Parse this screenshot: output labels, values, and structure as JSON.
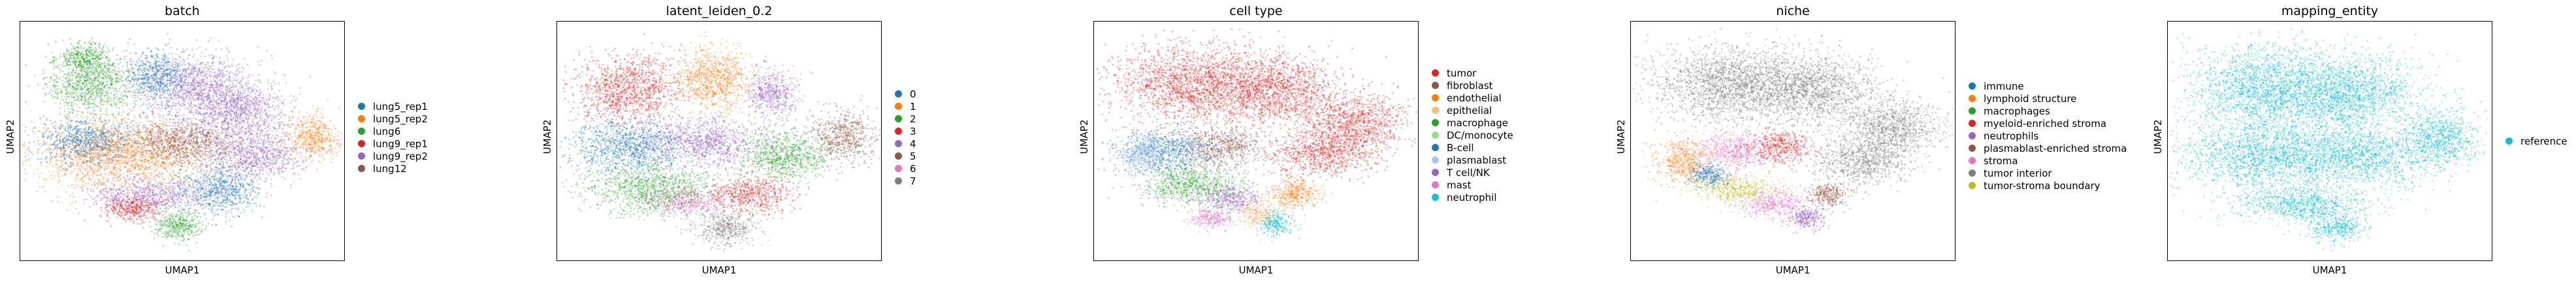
{
  "chart_data": [
    {
      "type": "scatter",
      "title": "batch",
      "xlabel": "UMAP1",
      "ylabel": "UMAP2",
      "legend_position": "right",
      "series": [
        {
          "name": "lung5_rep1",
          "color": "#1f77b4"
        },
        {
          "name": "lung5_rep2",
          "color": "#ff7f0e"
        },
        {
          "name": "lung6",
          "color": "#2ca02c"
        },
        {
          "name": "lung9_rep1",
          "color": "#d62728"
        },
        {
          "name": "lung9_rep2",
          "color": "#9467bd"
        },
        {
          "name": "lung12",
          "color": "#8c564b"
        }
      ],
      "clusters": [
        {
          "x": 0.22,
          "y": 0.74,
          "rx": 0.14,
          "ry": 0.12,
          "color": "#2ca02c"
        },
        {
          "x": 0.2,
          "y": 0.85,
          "rx": 0.08,
          "ry": 0.06,
          "color": "#2ca02c"
        },
        {
          "x": 0.55,
          "y": 0.72,
          "rx": 0.18,
          "ry": 0.14,
          "color": "#9467bd"
        },
        {
          "x": 0.42,
          "y": 0.78,
          "rx": 0.1,
          "ry": 0.1,
          "color": "#1f77b4"
        },
        {
          "x": 0.68,
          "y": 0.62,
          "rx": 0.14,
          "ry": 0.12,
          "color": "#9467bd"
        },
        {
          "x": 0.9,
          "y": 0.52,
          "rx": 0.08,
          "ry": 0.09,
          "color": "#ff7f0e"
        },
        {
          "x": 0.3,
          "y": 0.45,
          "rx": 0.26,
          "ry": 0.14,
          "color": "#ff7f0e"
        },
        {
          "x": 0.2,
          "y": 0.5,
          "rx": 0.14,
          "ry": 0.1,
          "color": "#1f77b4"
        },
        {
          "x": 0.5,
          "y": 0.5,
          "rx": 0.18,
          "ry": 0.1,
          "color": "#8c564b"
        },
        {
          "x": 0.72,
          "y": 0.44,
          "rx": 0.16,
          "ry": 0.1,
          "color": "#9467bd"
        },
        {
          "x": 0.4,
          "y": 0.28,
          "rx": 0.2,
          "ry": 0.07,
          "color": "#9467bd"
        },
        {
          "x": 0.35,
          "y": 0.22,
          "rx": 0.1,
          "ry": 0.05,
          "color": "#d62728"
        },
        {
          "x": 0.48,
          "y": 0.15,
          "rx": 0.08,
          "ry": 0.06,
          "color": "#2ca02c"
        },
        {
          "x": 0.62,
          "y": 0.3,
          "rx": 0.12,
          "ry": 0.1,
          "color": "#1f77b4"
        }
      ]
    },
    {
      "type": "scatter",
      "title": "latent_leiden_0.2",
      "xlabel": "UMAP1",
      "ylabel": "UMAP2",
      "legend_position": "right",
      "series": [
        {
          "name": "0",
          "color": "#1f77b4"
        },
        {
          "name": "1",
          "color": "#ff7f0e"
        },
        {
          "name": "2",
          "color": "#2ca02c"
        },
        {
          "name": "3",
          "color": "#d62728"
        },
        {
          "name": "4",
          "color": "#9467bd"
        },
        {
          "name": "5",
          "color": "#8c564b"
        },
        {
          "name": "6",
          "color": "#e377c2"
        },
        {
          "name": "7",
          "color": "#7f7f7f"
        }
      ],
      "clusters": [
        {
          "x": 0.22,
          "y": 0.72,
          "rx": 0.16,
          "ry": 0.14,
          "color": "#d62728"
        },
        {
          "x": 0.48,
          "y": 0.76,
          "rx": 0.12,
          "ry": 0.13,
          "color": "#ff7f0e"
        },
        {
          "x": 0.66,
          "y": 0.7,
          "rx": 0.08,
          "ry": 0.1,
          "color": "#9467bd"
        },
        {
          "x": 0.88,
          "y": 0.52,
          "rx": 0.1,
          "ry": 0.1,
          "color": "#8c564b"
        },
        {
          "x": 0.22,
          "y": 0.48,
          "rx": 0.18,
          "ry": 0.12,
          "color": "#1f77b4"
        },
        {
          "x": 0.46,
          "y": 0.5,
          "rx": 0.18,
          "ry": 0.1,
          "color": "#9467bd"
        },
        {
          "x": 0.7,
          "y": 0.44,
          "rx": 0.14,
          "ry": 0.1,
          "color": "#2ca02c"
        },
        {
          "x": 0.3,
          "y": 0.3,
          "rx": 0.2,
          "ry": 0.1,
          "color": "#2ca02c"
        },
        {
          "x": 0.4,
          "y": 0.25,
          "rx": 0.12,
          "ry": 0.06,
          "color": "#e377c2"
        },
        {
          "x": 0.52,
          "y": 0.14,
          "rx": 0.1,
          "ry": 0.07,
          "color": "#7f7f7f"
        },
        {
          "x": 0.6,
          "y": 0.28,
          "rx": 0.12,
          "ry": 0.08,
          "color": "#d62728"
        }
      ]
    },
    {
      "type": "scatter",
      "title": "cell type",
      "xlabel": "UMAP1",
      "ylabel": "UMAP2",
      "legend_position": "right",
      "series": [
        {
          "name": "tumor",
          "color": "#d62728"
        },
        {
          "name": "fibroblast",
          "color": "#8c564b"
        },
        {
          "name": "endothelial",
          "color": "#ff7f0e"
        },
        {
          "name": "epithelial",
          "color": "#ffbb78"
        },
        {
          "name": "macrophage",
          "color": "#2ca02c"
        },
        {
          "name": "DC/monocyte",
          "color": "#98df8a"
        },
        {
          "name": "B-cell",
          "color": "#1f77b4"
        },
        {
          "name": "plasmablast",
          "color": "#aec7e8"
        },
        {
          "name": "T cell/NK",
          "color": "#9467bd"
        },
        {
          "name": "mast",
          "color": "#e377c2"
        },
        {
          "name": "neutrophil",
          "color": "#17becf"
        }
      ],
      "clusters": [
        {
          "x": 0.3,
          "y": 0.74,
          "rx": 0.24,
          "ry": 0.16,
          "color": "#d62728"
        },
        {
          "x": 0.55,
          "y": 0.72,
          "rx": 0.2,
          "ry": 0.14,
          "color": "#d62728"
        },
        {
          "x": 0.8,
          "y": 0.58,
          "rx": 0.16,
          "ry": 0.12,
          "color": "#d62728"
        },
        {
          "x": 0.7,
          "y": 0.45,
          "rx": 0.16,
          "ry": 0.1,
          "color": "#d62728"
        },
        {
          "x": 0.22,
          "y": 0.46,
          "rx": 0.16,
          "ry": 0.1,
          "color": "#1f77b4"
        },
        {
          "x": 0.15,
          "y": 0.44,
          "rx": 0.08,
          "ry": 0.07,
          "color": "#aec7e8"
        },
        {
          "x": 0.4,
          "y": 0.48,
          "rx": 0.12,
          "ry": 0.08,
          "color": "#8c564b"
        },
        {
          "x": 0.3,
          "y": 0.32,
          "rx": 0.16,
          "ry": 0.08,
          "color": "#2ca02c"
        },
        {
          "x": 0.42,
          "y": 0.26,
          "rx": 0.1,
          "ry": 0.06,
          "color": "#9467bd"
        },
        {
          "x": 0.5,
          "y": 0.2,
          "rx": 0.06,
          "ry": 0.06,
          "color": "#ffbb78"
        },
        {
          "x": 0.56,
          "y": 0.16,
          "rx": 0.05,
          "ry": 0.05,
          "color": "#17becf"
        },
        {
          "x": 0.36,
          "y": 0.18,
          "rx": 0.06,
          "ry": 0.04,
          "color": "#e377c2"
        },
        {
          "x": 0.62,
          "y": 0.28,
          "rx": 0.08,
          "ry": 0.06,
          "color": "#ff7f0e"
        }
      ]
    },
    {
      "type": "scatter",
      "title": "niche",
      "xlabel": "UMAP1",
      "ylabel": "UMAP2",
      "legend_position": "right",
      "series": [
        {
          "name": "immune",
          "color": "#1f77b4"
        },
        {
          "name": "lymphoid structure",
          "color": "#ff7f0e"
        },
        {
          "name": "macrophages",
          "color": "#2ca02c"
        },
        {
          "name": "myeloid-enriched stroma",
          "color": "#d62728"
        },
        {
          "name": "neutrophils",
          "color": "#9467bd"
        },
        {
          "name": "plasmablast-enriched stroma",
          "color": "#8c564b"
        },
        {
          "name": "stroma",
          "color": "#e377c2"
        },
        {
          "name": "tumor interior",
          "color": "#7f7f7f"
        },
        {
          "name": "tumor-stroma boundary",
          "color": "#bcbd22"
        }
      ],
      "clusters": [
        {
          "x": 0.3,
          "y": 0.74,
          "rx": 0.24,
          "ry": 0.16,
          "color": "#7f7f7f"
        },
        {
          "x": 0.56,
          "y": 0.72,
          "rx": 0.2,
          "ry": 0.14,
          "color": "#7f7f7f"
        },
        {
          "x": 0.8,
          "y": 0.56,
          "rx": 0.16,
          "ry": 0.12,
          "color": "#7f7f7f"
        },
        {
          "x": 0.72,
          "y": 0.42,
          "rx": 0.14,
          "ry": 0.1,
          "color": "#7f7f7f"
        },
        {
          "x": 0.16,
          "y": 0.42,
          "rx": 0.08,
          "ry": 0.09,
          "color": "#ff7f0e"
        },
        {
          "x": 0.32,
          "y": 0.46,
          "rx": 0.12,
          "ry": 0.08,
          "color": "#e377c2"
        },
        {
          "x": 0.46,
          "y": 0.48,
          "rx": 0.1,
          "ry": 0.07,
          "color": "#d62728"
        },
        {
          "x": 0.32,
          "y": 0.3,
          "rx": 0.12,
          "ry": 0.06,
          "color": "#bcbd22"
        },
        {
          "x": 0.44,
          "y": 0.24,
          "rx": 0.1,
          "ry": 0.06,
          "color": "#e377c2"
        },
        {
          "x": 0.54,
          "y": 0.18,
          "rx": 0.06,
          "ry": 0.05,
          "color": "#9467bd"
        },
        {
          "x": 0.6,
          "y": 0.28,
          "rx": 0.06,
          "ry": 0.05,
          "color": "#8c564b"
        },
        {
          "x": 0.24,
          "y": 0.36,
          "rx": 0.06,
          "ry": 0.05,
          "color": "#1f77b4"
        }
      ]
    },
    {
      "type": "scatter",
      "title": "mapping_entity",
      "xlabel": "UMAP1",
      "ylabel": "UMAP2",
      "legend_position": "right",
      "series": [
        {
          "name": "reference",
          "color": "#17becf"
        }
      ],
      "clusters": [
        {
          "x": 0.3,
          "y": 0.72,
          "rx": 0.24,
          "ry": 0.18,
          "color": "#17becf"
        },
        {
          "x": 0.56,
          "y": 0.7,
          "rx": 0.22,
          "ry": 0.16,
          "color": "#17becf"
        },
        {
          "x": 0.84,
          "y": 0.52,
          "rx": 0.12,
          "ry": 0.12,
          "color": "#17becf"
        },
        {
          "x": 0.3,
          "y": 0.44,
          "rx": 0.26,
          "ry": 0.14,
          "color": "#17becf"
        },
        {
          "x": 0.6,
          "y": 0.44,
          "rx": 0.22,
          "ry": 0.12,
          "color": "#17becf"
        },
        {
          "x": 0.42,
          "y": 0.24,
          "rx": 0.2,
          "ry": 0.08,
          "color": "#17becf"
        },
        {
          "x": 0.52,
          "y": 0.14,
          "rx": 0.08,
          "ry": 0.06,
          "color": "#17becf"
        }
      ]
    }
  ]
}
